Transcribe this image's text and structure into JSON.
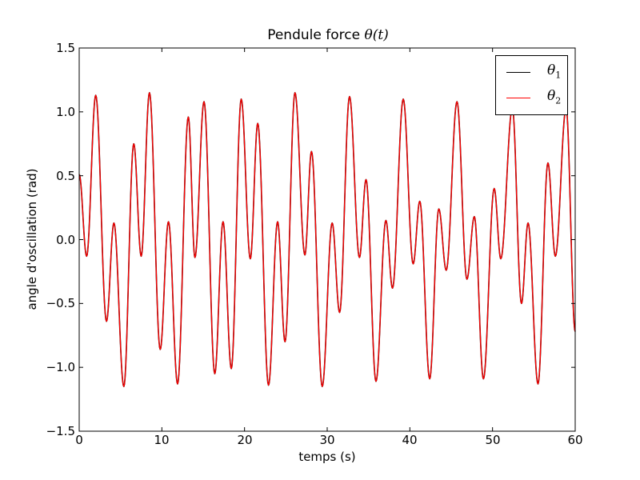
{
  "chart_data": {
    "type": "line",
    "title": "Pendule force θ(t)",
    "title_text": "Pendule force ",
    "title_math": "θ(t)",
    "xlabel": "temps (s)",
    "ylabel": "angle d'oscillation (rad)",
    "xlim": [
      0,
      60
    ],
    "ylim": [
      -1.5,
      1.5
    ],
    "xticks": [
      "0",
      "10",
      "20",
      "30",
      "40",
      "50",
      "60"
    ],
    "yticks": [
      "1.5",
      "1.0",
      "0.5",
      "0.0",
      "−0.5",
      "−1.0",
      "−1.5"
    ],
    "grid": false,
    "legend_position": "upper right",
    "legend": [
      {
        "symbol": "θ",
        "subscript": "1",
        "color": "#000000"
      },
      {
        "symbol": "θ",
        "subscript": "2",
        "color": "#ff0000"
      }
    ],
    "series": [
      {
        "name": "θ1",
        "color": "#000000",
        "note": "overlaps θ2 almost exactly",
        "x": [
          0,
          0.9,
          2.0,
          3.3,
          4.2,
          5.4,
          6.6,
          7.5,
          8.5,
          9.8,
          10.8,
          11.9,
          13.2,
          14.0,
          15.1,
          16.4,
          17.4,
          18.4,
          19.6,
          20.7,
          21.6,
          22.9,
          24.0,
          24.9,
          26.1,
          27.3,
          28.1,
          29.4,
          30.6,
          31.5,
          32.7,
          33.9,
          34.7,
          35.9,
          37.1,
          37.9,
          39.2,
          40.4,
          41.2,
          42.4,
          43.5,
          44.4,
          45.7,
          46.9,
          47.8,
          48.9,
          50.2,
          51.0,
          52.4,
          53.5,
          54.3,
          55.5,
          56.7,
          57.6,
          58.9,
          60.0
        ],
        "y": [
          0.51,
          -0.13,
          1.13,
          -0.64,
          0.13,
          -1.15,
          0.75,
          -0.13,
          1.15,
          -0.86,
          0.14,
          -1.13,
          0.96,
          -0.14,
          1.08,
          -1.05,
          0.14,
          -1.01,
          1.1,
          -0.15,
          0.91,
          -1.14,
          0.14,
          -0.8,
          1.15,
          -0.12,
          0.69,
          -1.15,
          0.13,
          -0.57,
          1.12,
          -0.14,
          0.47,
          -1.11,
          0.15,
          -0.38,
          1.1,
          -0.19,
          0.3,
          -1.09,
          0.24,
          -0.24,
          1.08,
          -0.31,
          0.18,
          -1.09,
          0.4,
          -0.15,
          1.03,
          -0.5,
          0.13,
          -1.13,
          0.6,
          -0.13,
          1.03,
          -0.72
        ]
      },
      {
        "name": "θ2",
        "color": "#ff0000",
        "x": [
          0,
          0.9,
          2.0,
          3.3,
          4.2,
          5.4,
          6.6,
          7.5,
          8.5,
          9.8,
          10.8,
          11.9,
          13.2,
          14.0,
          15.1,
          16.4,
          17.4,
          18.4,
          19.6,
          20.7,
          21.6,
          22.9,
          24.0,
          24.9,
          26.1,
          27.3,
          28.1,
          29.4,
          30.6,
          31.5,
          32.7,
          33.9,
          34.7,
          35.9,
          37.1,
          37.9,
          39.2,
          40.4,
          41.2,
          42.4,
          43.5,
          44.4,
          45.7,
          46.9,
          47.8,
          48.9,
          50.2,
          51.0,
          52.4,
          53.5,
          54.3,
          55.5,
          56.7,
          57.6,
          58.9,
          60.0
        ],
        "y": [
          0.51,
          -0.13,
          1.13,
          -0.64,
          0.13,
          -1.15,
          0.75,
          -0.13,
          1.15,
          -0.86,
          0.14,
          -1.13,
          0.96,
          -0.14,
          1.08,
          -1.05,
          0.14,
          -1.01,
          1.1,
          -0.15,
          0.91,
          -1.14,
          0.14,
          -0.8,
          1.15,
          -0.12,
          0.69,
          -1.15,
          0.13,
          -0.57,
          1.12,
          -0.14,
          0.47,
          -1.11,
          0.15,
          -0.38,
          1.1,
          -0.19,
          0.3,
          -1.09,
          0.24,
          -0.24,
          1.08,
          -0.31,
          0.18,
          -1.09,
          0.4,
          -0.15,
          1.03,
          -0.5,
          0.13,
          -1.13,
          0.6,
          -0.13,
          1.03,
          -0.72
        ]
      }
    ]
  }
}
